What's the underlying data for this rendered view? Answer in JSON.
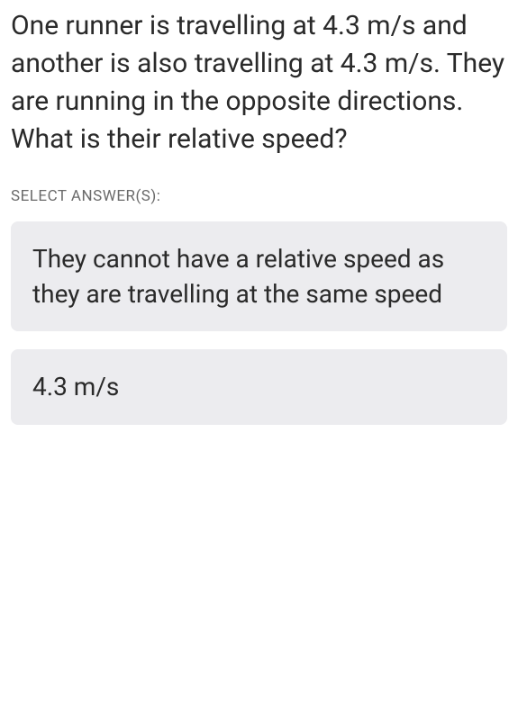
{
  "question": {
    "text": "One runner is travelling at 4.3 m/s and another is also travelling at 4.3 m/s. They are running in the opposite directions. What is their relative speed?",
    "text_color": "#2a2a2a",
    "font_size": 30
  },
  "select_label": "SELECT ANSWER(S):",
  "answers": [
    {
      "text": "They cannot have a relative speed as they are travelling at the same speed"
    },
    {
      "text": "4.3 m/s"
    }
  ],
  "answer_style": {
    "background_color": "#ececef",
    "text_color": "#2a2a2a",
    "font_size": 28,
    "border_radius": 8
  }
}
